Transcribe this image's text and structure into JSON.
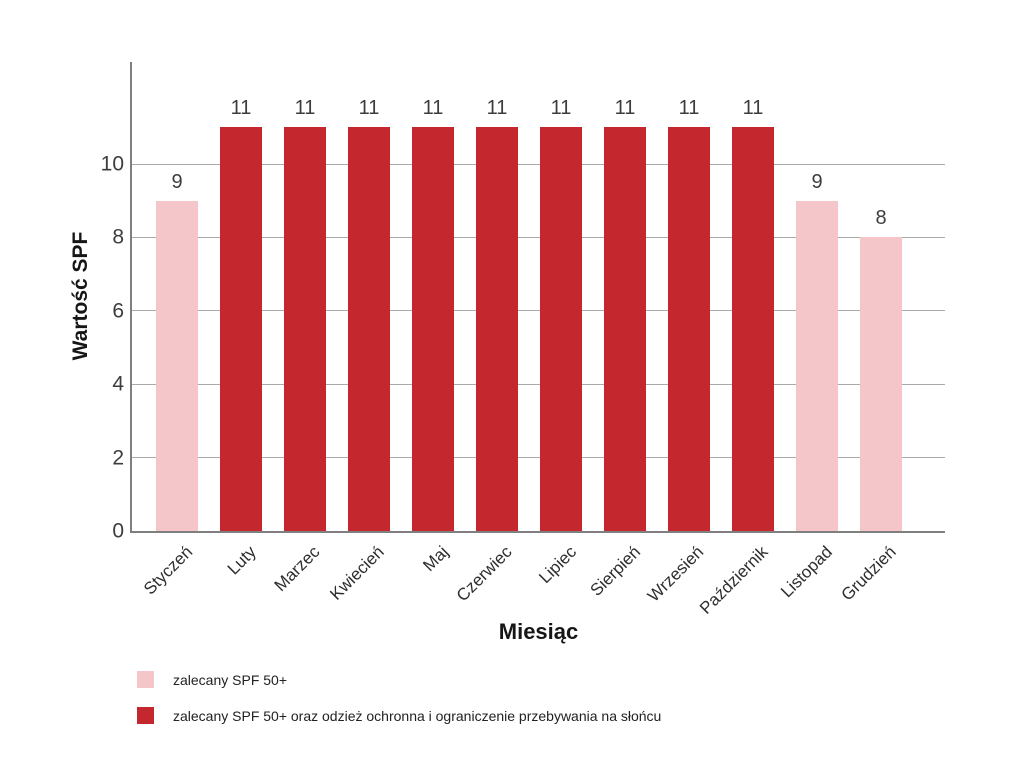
{
  "chart_data": {
    "type": "bar",
    "categories": [
      "Styczeń",
      "Luty",
      "Marzec",
      "Kwiecień",
      "Maj",
      "Czerwiec",
      "Lipiec",
      "Sierpień",
      "Wrzesień",
      "Październik",
      "Listopad",
      "Grudzień"
    ],
    "values": [
      9,
      11,
      11,
      11,
      11,
      11,
      11,
      11,
      11,
      11,
      9,
      8
    ],
    "bar_group_index": [
      0,
      1,
      1,
      1,
      1,
      1,
      1,
      1,
      1,
      1,
      0,
      0
    ],
    "value_labels": [
      "9",
      "11",
      "11",
      "11",
      "11",
      "11",
      "11",
      "11",
      "11",
      "11",
      "9",
      "8"
    ],
    "xlabel": "Miesiąc",
    "ylabel": "Wartość SPF",
    "yticks": [
      0,
      2,
      4,
      6,
      8,
      10
    ],
    "ylim": [
      0,
      12.8
    ],
    "grid": "horizontal",
    "legend_position": "bottom-left",
    "legend": [
      {
        "label": "zalecany SPF 50+",
        "color": "#f4c6ca"
      },
      {
        "label": "zalecany SPF 50+ oraz odzież ochronna i ograniczenie przebywania na słońcu",
        "color": "#c4282e"
      }
    ],
    "colors": {
      "pink": "#f4c6ca",
      "red": "#c4282e",
      "grid": "#a9a9a9",
      "axis": "#7f7f7f"
    }
  }
}
